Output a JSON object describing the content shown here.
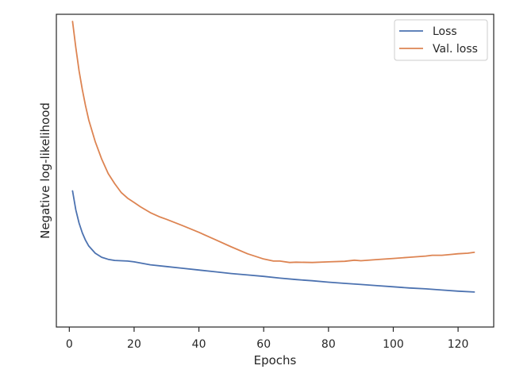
{
  "chart_data": {
    "type": "line",
    "xlabel": "Epochs",
    "ylabel": "Negative log-likelihood",
    "xlim": [
      -4,
      131
    ],
    "ylim": [
      0,
      100
    ],
    "xticks": [
      0,
      20,
      40,
      60,
      80,
      100,
      120
    ],
    "y_tick_labels_shown": false,
    "grid": false,
    "legend_position": "top-right",
    "series": [
      {
        "name": "Loss",
        "color": "#4c72b0",
        "x": [
          1,
          2,
          3,
          4,
          5,
          6,
          8,
          10,
          12,
          14,
          16,
          18,
          20,
          25,
          30,
          35,
          40,
          45,
          50,
          55,
          60,
          65,
          70,
          75,
          80,
          85,
          90,
          95,
          100,
          105,
          110,
          115,
          120,
          125
        ],
        "y": [
          41.5,
          35.0,
          30.4,
          27.0,
          24.5,
          22.5,
          20.0,
          18.6,
          17.9,
          17.5,
          17.4,
          17.3,
          17.0,
          16.0,
          15.4,
          14.8,
          14.2,
          13.6,
          13.0,
          12.5,
          12.0,
          11.4,
          10.9,
          10.5,
          10.0,
          9.6,
          9.2,
          8.8,
          8.4,
          8.0,
          7.7,
          7.3,
          6.9,
          6.6
        ]
      },
      {
        "name": "Val. loss",
        "color": "#dd8452",
        "x": [
          1,
          2,
          3,
          4,
          5,
          6,
          8,
          10,
          12,
          14,
          16,
          18,
          20,
          22,
          25,
          28,
          30,
          35,
          40,
          45,
          50,
          55,
          60,
          63,
          65,
          68,
          70,
          75,
          80,
          85,
          88,
          90,
          95,
          100,
          105,
          110,
          112,
          115,
          118,
          120,
          123,
          125
        ],
        "y": [
          100.0,
          91.0,
          83.0,
          76.5,
          71.0,
          66.0,
          58.5,
          52.5,
          47.5,
          44.0,
          41.0,
          39.0,
          37.5,
          36.0,
          34.0,
          32.5,
          31.7,
          29.5,
          27.2,
          24.7,
          22.2,
          19.8,
          18.0,
          17.3,
          17.3,
          16.8,
          16.9,
          16.8,
          17.0,
          17.2,
          17.6,
          17.4,
          17.8,
          18.2,
          18.6,
          19.0,
          19.3,
          19.3,
          19.6,
          19.8,
          20.0,
          20.3
        ]
      }
    ]
  }
}
